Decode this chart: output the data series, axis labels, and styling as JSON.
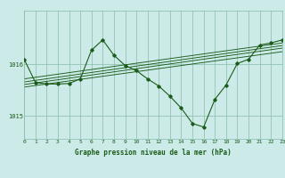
{
  "bg_color": "#cceae7",
  "line_color": "#1a5c1a",
  "grid_color": "#88bba8",
  "xlabel": "Graphe pression niveau de la mer (hPa)",
  "ylabel_ticks": [
    1015,
    1016
  ],
  "xmin": 0,
  "xmax": 23,
  "ymin": 1014.55,
  "ymax": 1017.05,
  "main_line": {
    "x": [
      0,
      1,
      2,
      3,
      4,
      5,
      6,
      7,
      8,
      9,
      10,
      11,
      12,
      13,
      14,
      15,
      16,
      17,
      18,
      19,
      20,
      21,
      22,
      23
    ],
    "y": [
      1016.1,
      1015.65,
      1015.62,
      1015.62,
      1015.63,
      1015.72,
      1016.28,
      1016.48,
      1016.18,
      1015.98,
      1015.88,
      1015.72,
      1015.58,
      1015.38,
      1015.15,
      1014.85,
      1014.78,
      1015.32,
      1015.6,
      1016.02,
      1016.1,
      1016.38,
      1016.42,
      1016.48
    ]
  },
  "trend_lines": [
    {
      "x": [
        0,
        23
      ],
      "y": [
        1015.72,
        1016.42
      ]
    },
    {
      "x": [
        0,
        23
      ],
      "y": [
        1015.66,
        1016.37
      ]
    },
    {
      "x": [
        0,
        23
      ],
      "y": [
        1015.61,
        1016.32
      ]
    },
    {
      "x": [
        0,
        23
      ],
      "y": [
        1015.56,
        1016.25
      ]
    }
  ],
  "tick_fontsize": 4.5,
  "label_fontsize": 5.5
}
